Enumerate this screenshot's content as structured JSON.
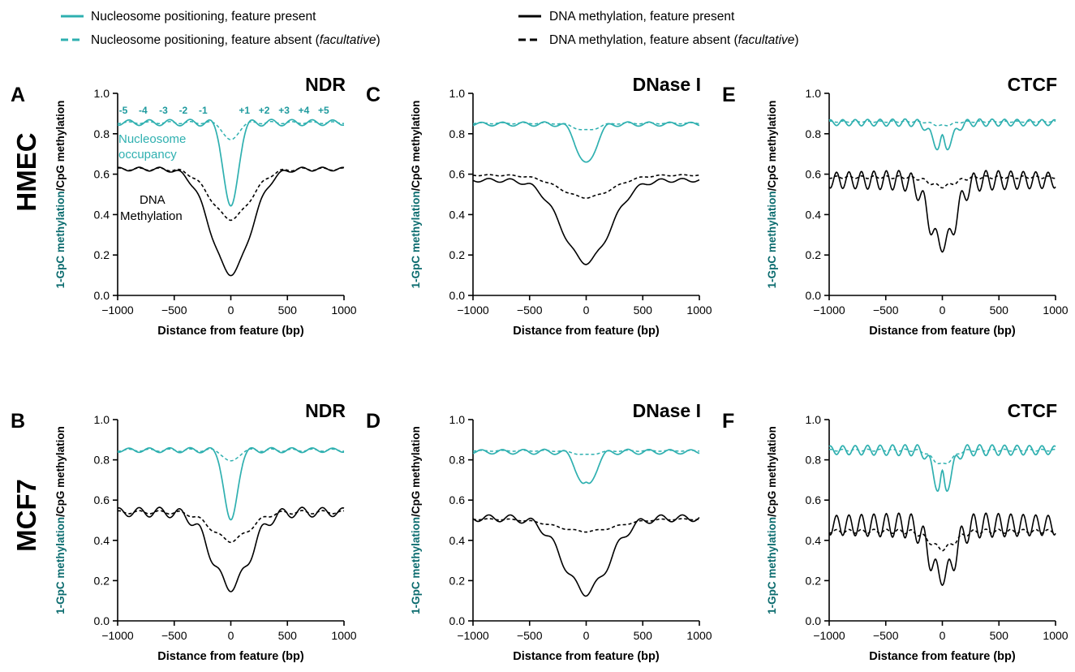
{
  "legend": {
    "items": [
      {
        "label": "Nucleosome positioning, feature present",
        "color": "#2fb0b0",
        "style": "solid"
      },
      {
        "label_pre": "Nucleosome positioning, feature absent (",
        "label_em": "facultative",
        "label_post": ")",
        "color": "#2fb0b0",
        "style": "dashed"
      },
      {
        "label": "DNA methylation, feature present",
        "color": "#000000",
        "style": "solid"
      },
      {
        "label_pre": "DNA methylation, feature absent (",
        "label_em": "facultative",
        "label_post": ")",
        "color": "#000000",
        "style": "dashed"
      }
    ]
  },
  "row_labels": [
    "HMEC",
    "MCF7"
  ],
  "colors": {
    "nucleosome": "#2fb0b0",
    "methylation": "#000000",
    "ylabel_teal": "#0a6b6e"
  },
  "y_label": {
    "part1": "1-GpC methylation",
    "part2": "/CpG methylation"
  },
  "nucleosome_labels": [
    "-5",
    "-4",
    "-3",
    "-2",
    "-1",
    "+1",
    "+2",
    "+3",
    "+4",
    "+5"
  ],
  "annotations": {
    "nuc_line1": "Nucleosome",
    "nuc_line2": "occupancy",
    "dna_line1": "DNA",
    "dna_line2": "Methylation"
  },
  "chart_data": [
    {
      "id": "A",
      "letter": "A",
      "type": "line",
      "title": "NDR",
      "xlabel": "Distance from feature (bp)",
      "xlim": [
        -1000,
        1000
      ],
      "ylim": [
        0,
        1.0
      ],
      "x_ticks": [
        -1000,
        -500,
        0,
        500,
        1000
      ],
      "x_tick_labels": [
        "−1000",
        "−500",
        "0",
        "500",
        "1000"
      ],
      "y_ticks": [
        0,
        0.2,
        0.4,
        0.6,
        0.8,
        1.0
      ],
      "y_tick_labels": [
        "0.0",
        "0.2",
        "0.4",
        "0.6",
        "0.8",
        "1.0"
      ],
      "curves": {
        "nuc_present": {
          "base": 0.855,
          "osc": 0.018,
          "period": 180,
          "phase": 0,
          "osc_range": 950,
          "dip_depth": 0.43,
          "dip_width": 60,
          "dip_split": 0
        },
        "nuc_absent": {
          "base": 0.855,
          "osc": 0.006,
          "period": 180,
          "phase": 0,
          "osc_range": 950,
          "dip_depth": 0.09,
          "dip_width": 60,
          "dip_split": 0
        },
        "meth_present": {
          "base": 0.625,
          "osc": 0.012,
          "period": 180,
          "phase": 90,
          "osc_range": 950,
          "dip_depth": 0.515,
          "dip_width": 175,
          "dip_split": 0
        },
        "meth_absent": {
          "base": 0.625,
          "osc": 0.008,
          "period": 180,
          "phase": 90,
          "osc_range": 950,
          "dip_depth": 0.245,
          "dip_width": 175,
          "dip_split": 0
        }
      }
    },
    {
      "id": "C",
      "letter": "C",
      "type": "line",
      "title": "DNase I",
      "xlabel": "Distance from feature (bp)",
      "xlim": [
        -1000,
        1000
      ],
      "ylim": [
        0,
        1.0
      ],
      "x_ticks": [
        -1000,
        -500,
        0,
        500,
        1000
      ],
      "x_tick_labels": [
        "−1000",
        "−500",
        "0",
        "500",
        "1000"
      ],
      "y_ticks": [
        0,
        0.2,
        0.4,
        0.6,
        0.8,
        1.0
      ],
      "y_tick_labels": [
        "0.0",
        "0.2",
        "0.4",
        "0.6",
        "0.8",
        "1.0"
      ],
      "curves": {
        "nuc_present": {
          "base": 0.848,
          "osc": 0.012,
          "period": 185,
          "phase": 0,
          "osc_range": 950,
          "dip_depth": 0.2,
          "dip_width": 80,
          "dip_split": 0
        },
        "nuc_absent": {
          "base": 0.852,
          "osc": 0.004,
          "period": 185,
          "phase": 0,
          "osc_range": 950,
          "dip_depth": 0.035,
          "dip_width": 100,
          "dip_split": 0
        },
        "meth_present": {
          "base": 0.57,
          "osc": 0.012,
          "period": 190,
          "phase": 90,
          "osc_range": 950,
          "dip_depth": 0.405,
          "dip_width": 210,
          "dip_split": 0
        },
        "meth_absent": {
          "base": 0.595,
          "osc": 0.004,
          "period": 190,
          "phase": 90,
          "osc_range": 950,
          "dip_depth": 0.11,
          "dip_width": 230,
          "dip_split": 0
        }
      }
    },
    {
      "id": "E",
      "letter": "E",
      "type": "line",
      "title": "CTCF",
      "xlabel": "Distance from feature (bp)",
      "xlim": [
        -1000,
        1000
      ],
      "ylim": [
        0,
        1.0
      ],
      "x_ticks": [
        -1000,
        -500,
        0,
        500,
        1000
      ],
      "x_tick_labels": [
        "−1000",
        "−500",
        "0",
        "500",
        "1000"
      ],
      "y_ticks": [
        0,
        0.2,
        0.4,
        0.6,
        0.8,
        1.0
      ],
      "y_tick_labels": [
        "0.0",
        "0.2",
        "0.4",
        "0.6",
        "0.8",
        "1.0"
      ],
      "curves": {
        "nuc_present": {
          "base": 0.855,
          "osc": 0.02,
          "period": 110,
          "phase": 0,
          "osc_range": 950,
          "dip_depth": 0.14,
          "dip_width": 80,
          "dip_split": 0.06
        },
        "nuc_absent": {
          "base": 0.86,
          "osc": 0.004,
          "period": 110,
          "phase": 0,
          "osc_range": 950,
          "dip_depth": 0.02,
          "dip_width": 80,
          "dip_split": 0
        },
        "meth_present": {
          "base": 0.57,
          "osc": 0.055,
          "period": 110,
          "phase": 55,
          "osc_range": 950,
          "dip_depth": 0.34,
          "dip_width": 110,
          "dip_split": 0.04
        },
        "meth_absent": {
          "base": 0.585,
          "osc": 0.008,
          "period": 110,
          "phase": 55,
          "osc_range": 950,
          "dip_depth": 0.045,
          "dip_width": 110,
          "dip_split": 0
        }
      }
    },
    {
      "id": "B",
      "letter": "B",
      "type": "line",
      "title": "NDR",
      "xlabel": "Distance from feature (bp)",
      "xlim": [
        -1000,
        1000
      ],
      "ylim": [
        0,
        1.0
      ],
      "x_ticks": [
        -1000,
        -500,
        0,
        500,
        1000
      ],
      "x_tick_labels": [
        "−1000",
        "−500",
        "0",
        "500",
        "1000"
      ],
      "y_ticks": [
        0,
        0.2,
        0.4,
        0.6,
        0.8,
        1.0
      ],
      "y_tick_labels": [
        "0.0",
        "0.2",
        "0.4",
        "0.6",
        "0.8",
        "1.0"
      ],
      "curves": {
        "nuc_present": {
          "base": 0.848,
          "osc": 0.014,
          "period": 180,
          "phase": 0,
          "osc_range": 950,
          "dip_depth": 0.36,
          "dip_width": 55,
          "dip_split": 0
        },
        "nuc_absent": {
          "base": 0.848,
          "osc": 0.007,
          "period": 180,
          "phase": 0,
          "osc_range": 950,
          "dip_depth": 0.06,
          "dip_width": 55,
          "dip_split": 0
        },
        "meth_present": {
          "base": 0.54,
          "osc": 0.03,
          "period": 180,
          "phase": 90,
          "osc_range": 950,
          "dip_depth": 0.375,
          "dip_width": 165,
          "dip_split": 0.01
        },
        "meth_absent": {
          "base": 0.54,
          "osc": 0.01,
          "period": 180,
          "phase": 90,
          "osc_range": 950,
          "dip_depth": 0.14,
          "dip_width": 165,
          "dip_split": 0
        }
      }
    },
    {
      "id": "D",
      "letter": "D",
      "type": "line",
      "title": "DNase I",
      "xlabel": "Distance from feature (bp)",
      "xlim": [
        -1000,
        1000
      ],
      "ylim": [
        0,
        1.0
      ],
      "x_ticks": [
        -1000,
        -500,
        0,
        500,
        1000
      ],
      "x_tick_labels": [
        "−1000",
        "−500",
        "0",
        "500",
        "1000"
      ],
      "y_ticks": [
        0,
        0.2,
        0.4,
        0.6,
        0.8,
        1.0
      ],
      "y_tick_labels": [
        "0.0",
        "0.2",
        "0.4",
        "0.6",
        "0.8",
        "1.0"
      ],
      "curves": {
        "nuc_present": {
          "base": 0.84,
          "osc": 0.014,
          "period": 185,
          "phase": 0,
          "osc_range": 950,
          "dip_depth": 0.18,
          "dip_width": 75,
          "dip_split": 0.015
        },
        "nuc_absent": {
          "base": 0.845,
          "osc": 0.003,
          "period": 185,
          "phase": 0,
          "osc_range": 950,
          "dip_depth": 0.02,
          "dip_width": 100,
          "dip_split": 0
        },
        "meth_present": {
          "base": 0.51,
          "osc": 0.022,
          "period": 190,
          "phase": 90,
          "osc_range": 950,
          "dip_depth": 0.365,
          "dip_width": 200,
          "dip_split": 0
        },
        "meth_absent": {
          "base": 0.505,
          "osc": 0.004,
          "period": 190,
          "phase": 90,
          "osc_range": 950,
          "dip_depth": 0.06,
          "dip_width": 260,
          "dip_split": 0
        }
      }
    },
    {
      "id": "F",
      "letter": "F",
      "type": "line",
      "title": "CTCF",
      "xlabel": "Distance from feature (bp)",
      "xlim": [
        -1000,
        1000
      ],
      "ylim": [
        0,
        1.0
      ],
      "x_ticks": [
        -1000,
        -500,
        0,
        500,
        1000
      ],
      "x_tick_labels": [
        "−1000",
        "−500",
        "0",
        "500",
        "1000"
      ],
      "y_ticks": [
        0,
        0.2,
        0.4,
        0.6,
        0.8,
        1.0
      ],
      "y_tick_labels": [
        "0.0",
        "0.2",
        "0.4",
        "0.6",
        "0.8",
        "1.0"
      ],
      "curves": {
        "nuc_present": {
          "base": 0.848,
          "osc": 0.03,
          "period": 110,
          "phase": 0,
          "osc_range": 950,
          "dip_depth": 0.22,
          "dip_width": 70,
          "dip_split": 0.09
        },
        "nuc_absent": {
          "base": 0.848,
          "osc": 0.006,
          "period": 110,
          "phase": 0,
          "osc_range": 950,
          "dip_depth": 0.07,
          "dip_width": 85,
          "dip_split": 0
        },
        "meth_present": {
          "base": 0.475,
          "osc": 0.068,
          "period": 110,
          "phase": 55,
          "osc_range": 950,
          "dip_depth": 0.28,
          "dip_width": 100,
          "dip_split": 0.05
        },
        "meth_absent": {
          "base": 0.445,
          "osc": 0.012,
          "period": 110,
          "phase": 55,
          "osc_range": 950,
          "dip_depth": 0.085,
          "dip_width": 110,
          "dip_split": 0
        }
      }
    }
  ]
}
